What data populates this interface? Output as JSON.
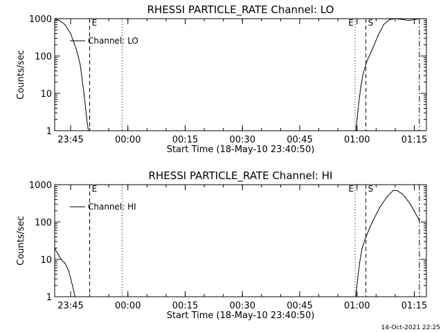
{
  "footer": {
    "timestamp": "14-Oct-2021 22:25"
  },
  "chart_data": [
    {
      "type": "line",
      "title": "RHESSI PARTICLE_RATE Channel: LO",
      "xlabel": "Start Time (18-May-10 23:40:50)",
      "ylabel": "Counts/sec",
      "yscale": "log",
      "ylim": [
        1,
        1000
      ],
      "y_ticks": [
        "1",
        "10",
        "100",
        "1000"
      ],
      "x_ticks": [
        "23:45",
        "00:00",
        "00:15",
        "00:30",
        "00:45",
        "01:00",
        "01:15"
      ],
      "legend": {
        "label": "Channel: LO",
        "placement": "top-left"
      },
      "markers": [
        {
          "label": "E",
          "time": "23:50:00",
          "style": "dashed"
        },
        {
          "label": "",
          "time": "23:58:30",
          "style": "dotted"
        },
        {
          "label": "E",
          "time": "00:59:30",
          "style": "dotted"
        },
        {
          "label": "S",
          "time": "01:02:20",
          "style": "dashed"
        },
        {
          "label": "",
          "time": "01:16:20",
          "style": "dashdot"
        }
      ],
      "series": [
        {
          "name": "Channel: LO",
          "segments": [
            [
              [
                "23:40:50",
                1000
              ],
              [
                "23:42:00",
                900
              ],
              [
                "23:43:30",
                700
              ],
              [
                "23:45:00",
                400
              ],
              [
                "23:46:30",
                150
              ],
              [
                "23:47:30",
                60
              ],
              [
                "23:48:30",
                10
              ],
              [
                "23:49:15",
                2
              ],
              [
                "23:49:40",
                1
              ]
            ],
            [
              [
                "00:59:40",
                1
              ],
              [
                "01:00:00",
                2
              ],
              [
                "01:00:30",
                6
              ],
              [
                "01:01:00",
                15
              ],
              [
                "01:01:30",
                30
              ],
              [
                "01:02:30",
                70
              ],
              [
                "01:04:00",
                150
              ],
              [
                "01:05:30",
                350
              ],
              [
                "01:07:00",
                700
              ],
              [
                "01:08:30",
                950
              ],
              [
                "01:10:00",
                1000
              ],
              [
                "01:12:00",
                950
              ],
              [
                "01:13:30",
                900
              ],
              [
                "01:15:00",
                950
              ],
              [
                "01:16:20",
                1000
              ]
            ]
          ]
        }
      ]
    },
    {
      "type": "line",
      "title": "RHESSI PARTICLE_RATE Channel: HI",
      "xlabel": "Start Time (18-May-10 23:40:50)",
      "ylabel": "Counts/sec",
      "yscale": "log",
      "ylim": [
        1,
        1000
      ],
      "y_ticks": [
        "1",
        "10",
        "100",
        "1000"
      ],
      "x_ticks": [
        "23:45",
        "00:00",
        "00:15",
        "00:30",
        "00:45",
        "01:00",
        "01:15"
      ],
      "legend": {
        "label": "Channel: HI",
        "placement": "top-left"
      },
      "markers": [
        {
          "label": "E",
          "time": "23:50:00",
          "style": "dashed"
        },
        {
          "label": "",
          "time": "23:58:30",
          "style": "dotted"
        },
        {
          "label": "E",
          "time": "00:59:30",
          "style": "dotted"
        },
        {
          "label": "S",
          "time": "01:02:20",
          "style": "dashed"
        },
        {
          "label": "",
          "time": "01:16:20",
          "style": "dashdot"
        }
      ],
      "series": [
        {
          "name": "Channel: HI",
          "segments": [
            [
              [
                "23:40:50",
                20
              ],
              [
                "23:41:30",
                15
              ],
              [
                "23:42:30",
                10
              ],
              [
                "23:43:30",
                8
              ],
              [
                "23:44:30",
                5
              ],
              [
                "23:45:30",
                2
              ],
              [
                "23:46:10",
                1
              ]
            ],
            [
              [
                "00:59:40",
                1
              ],
              [
                "01:00:10",
                3
              ],
              [
                "01:00:40",
                8
              ],
              [
                "01:01:20",
                20
              ],
              [
                "01:02:20",
                40
              ],
              [
                "01:04:00",
                100
              ],
              [
                "01:06:00",
                250
              ],
              [
                "01:08:00",
                500
              ],
              [
                "01:09:30",
                700
              ],
              [
                "01:10:30",
                700
              ],
              [
                "01:12:00",
                550
              ],
              [
                "01:14:00",
                300
              ],
              [
                "01:16:20",
                110
              ]
            ]
          ]
        }
      ]
    }
  ]
}
